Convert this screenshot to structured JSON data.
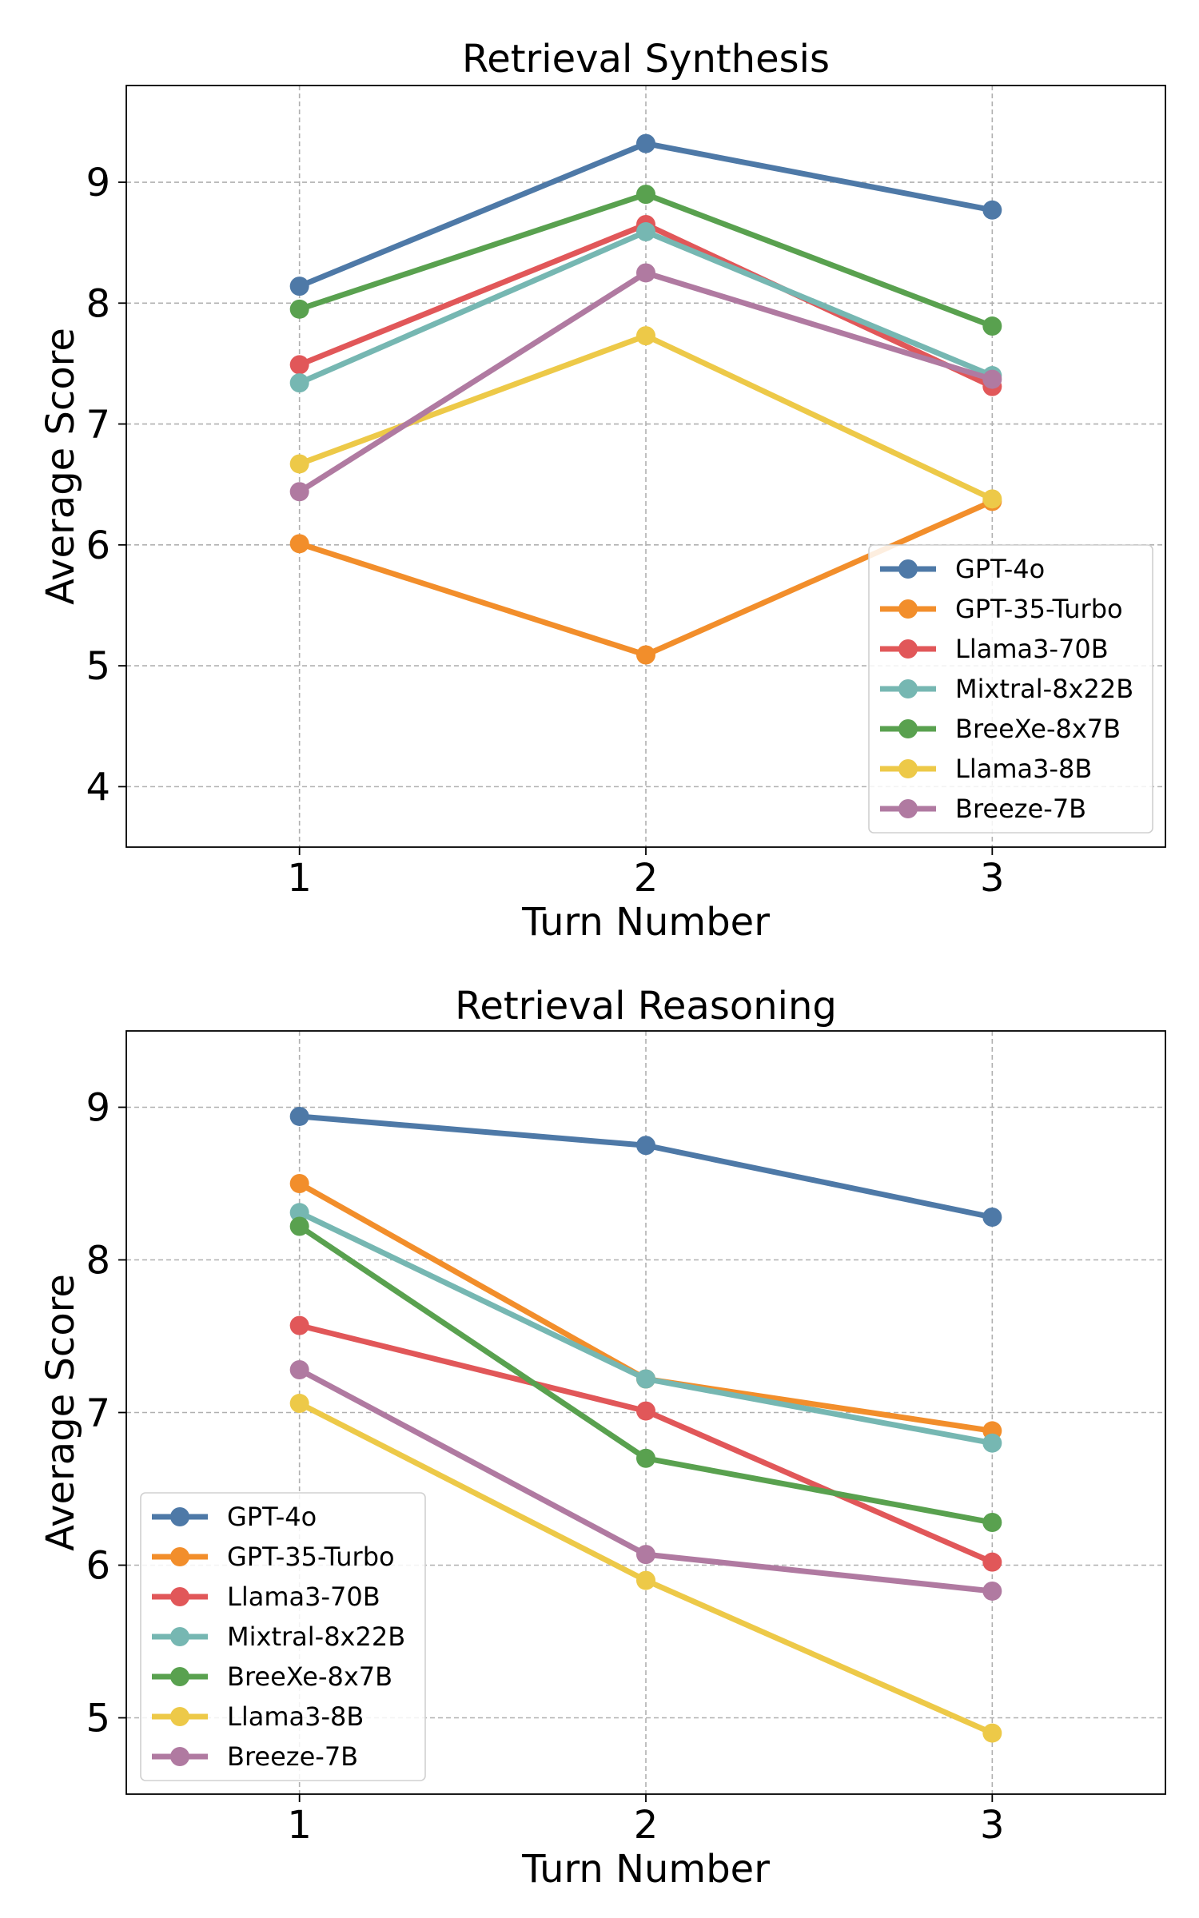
{
  "chart_data": [
    {
      "type": "line",
      "title": "Retrieval Synthesis",
      "xlabel": "Turn Number",
      "ylabel": "Average Score",
      "x": [
        1,
        2,
        3
      ],
      "xlim": [
        0.5,
        3.5
      ],
      "ylim": [
        3.5,
        9.8
      ],
      "yticks": [
        4,
        5,
        6,
        7,
        8,
        9
      ],
      "grid": true,
      "legend_position": "lower-right",
      "series": [
        {
          "name": "GPT-4o",
          "color": "#4e79a7",
          "values": [
            8.14,
            9.32,
            8.77
          ]
        },
        {
          "name": "GPT-35-Turbo",
          "color": "#f28e2b",
          "values": [
            6.01,
            5.09,
            6.36
          ]
        },
        {
          "name": "Llama3-70B",
          "color": "#e15759",
          "values": [
            7.49,
            8.65,
            7.31
          ]
        },
        {
          "name": "Mixtral-8x22B",
          "color": "#76b7b2",
          "values": [
            7.34,
            8.59,
            7.4
          ]
        },
        {
          "name": "BreeXe-8x7B",
          "color": "#59a14f",
          "values": [
            7.95,
            8.9,
            7.81
          ]
        },
        {
          "name": "Llama3-8B",
          "color": "#edc948",
          "values": [
            6.67,
            7.73,
            6.38
          ]
        },
        {
          "name": "Breeze-7B",
          "color": "#b07aa1",
          "values": [
            6.44,
            8.25,
            7.37
          ]
        }
      ]
    },
    {
      "type": "line",
      "title": "Retrieval Reasoning",
      "xlabel": "Turn Number",
      "ylabel": "Average Score",
      "x": [
        1,
        2,
        3
      ],
      "xlim": [
        0.5,
        3.5
      ],
      "ylim": [
        4.5,
        9.5
      ],
      "yticks": [
        5,
        6,
        7,
        8,
        9
      ],
      "grid": true,
      "legend_position": "lower-left",
      "series": [
        {
          "name": "GPT-4o",
          "color": "#4e79a7",
          "values": [
            8.94,
            8.75,
            8.28
          ]
        },
        {
          "name": "GPT-35-Turbo",
          "color": "#f28e2b",
          "values": [
            8.5,
            7.22,
            6.88
          ]
        },
        {
          "name": "Llama3-70B",
          "color": "#e15759",
          "values": [
            7.57,
            7.01,
            6.02
          ]
        },
        {
          "name": "Mixtral-8x22B",
          "color": "#76b7b2",
          "values": [
            8.31,
            7.22,
            6.8
          ]
        },
        {
          "name": "BreeXe-8x7B",
          "color": "#59a14f",
          "values": [
            8.22,
            6.7,
            6.28
          ]
        },
        {
          "name": "Llama3-8B",
          "color": "#edc948",
          "values": [
            7.06,
            5.9,
            4.9
          ]
        },
        {
          "name": "Breeze-7B",
          "color": "#b07aa1",
          "values": [
            7.28,
            6.07,
            5.83
          ]
        }
      ]
    }
  ]
}
